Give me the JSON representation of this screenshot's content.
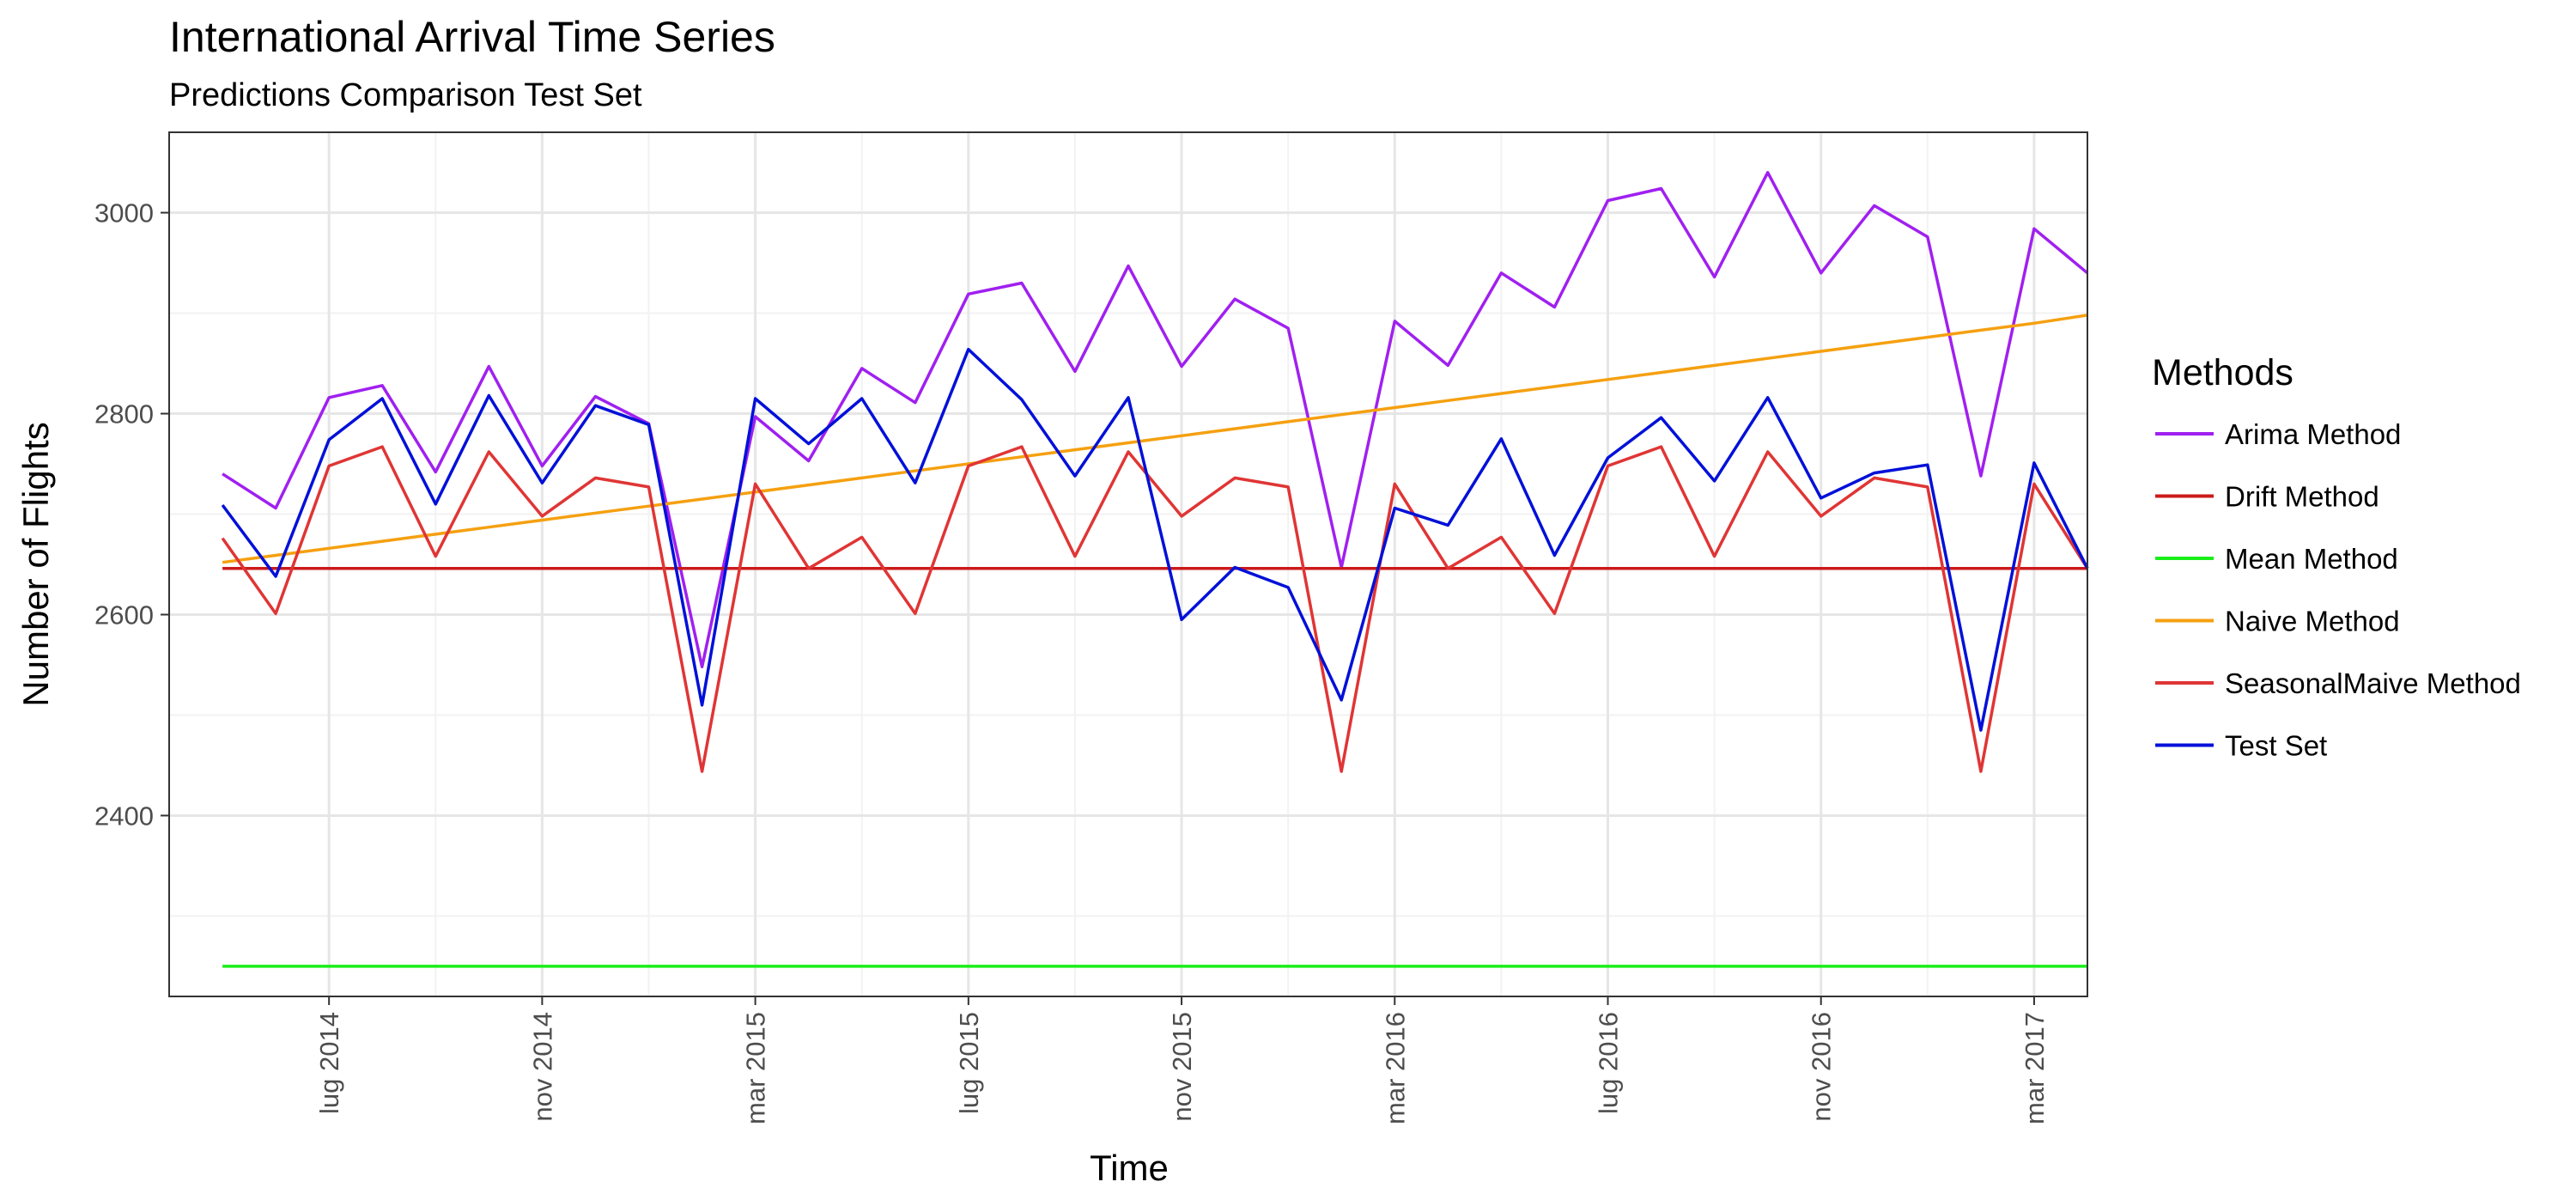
{
  "chart_data": {
    "type": "line",
    "title": "International Arrival Time Series",
    "subtitle": "Predictions Comparison Test Set",
    "xlabel": "Time",
    "ylabel": "Number of Flights",
    "x_range": [
      "2014-04",
      "2017-04"
    ],
    "ylim": [
      2220,
      3080
    ],
    "y_ticks": [
      2400,
      2600,
      2800,
      3000
    ],
    "x_ticks": [
      {
        "label": "lug 2014",
        "date": "2014-07"
      },
      {
        "label": "nov 2014",
        "date": "2014-11"
      },
      {
        "label": "mar 2015",
        "date": "2015-03"
      },
      {
        "label": "lug 2015",
        "date": "2015-07"
      },
      {
        "label": "nov 2015",
        "date": "2015-11"
      },
      {
        "label": "mar 2016",
        "date": "2016-03"
      },
      {
        "label": "lug 2016",
        "date": "2016-07"
      },
      {
        "label": "nov 2016",
        "date": "2016-11"
      },
      {
        "label": "mar 2017",
        "date": "2017-03"
      }
    ],
    "grid": true,
    "legend_position": "right",
    "legend_title": "Methods",
    "x": [
      "2014-05",
      "2014-06",
      "2014-07",
      "2014-08",
      "2014-09",
      "2014-10",
      "2014-11",
      "2014-12",
      "2015-01",
      "2015-02",
      "2015-03",
      "2015-04",
      "2015-05",
      "2015-06",
      "2015-07",
      "2015-08",
      "2015-09",
      "2015-10",
      "2015-11",
      "2015-12",
      "2016-01",
      "2016-02",
      "2016-03",
      "2016-04",
      "2016-05",
      "2016-06",
      "2016-07",
      "2016-08",
      "2016-09",
      "2016-10",
      "2016-11",
      "2016-12",
      "2017-01",
      "2017-02",
      "2017-03",
      "2017-04"
    ],
    "series": [
      {
        "name": "Arima Method",
        "color": "#a020f0",
        "values": [
          2740,
          2706,
          2816,
          2828,
          2742,
          2847,
          2748,
          2817,
          2790,
          2548,
          2797,
          2753,
          2845,
          2811,
          2919,
          2930,
          2842,
          2947,
          2847,
          2914,
          2885,
          2647,
          2892,
          2848,
          2940,
          2906,
          3012,
          3024,
          2936,
          3040,
          2940,
          3007,
          2976,
          2738,
          2984,
          2940
        ]
      },
      {
        "name": "Drift Method",
        "color": "#cc1a1a",
        "values": [
          2646,
          2646,
          2646,
          2646,
          2646,
          2646,
          2646,
          2646,
          2646,
          2646,
          2646,
          2646,
          2646,
          2646,
          2646,
          2646,
          2646,
          2646,
          2646,
          2646,
          2646,
          2646,
          2646,
          2646,
          2646,
          2646,
          2646,
          2646,
          2646,
          2646,
          2646,
          2646,
          2646,
          2646,
          2646,
          2646
        ]
      },
      {
        "name": "Mean Method",
        "color": "#1aee1a",
        "values": [
          2250,
          2250,
          2250,
          2250,
          2250,
          2250,
          2250,
          2250,
          2250,
          2250,
          2250,
          2250,
          2250,
          2250,
          2250,
          2250,
          2250,
          2250,
          2250,
          2250,
          2250,
          2250,
          2250,
          2250,
          2250,
          2250,
          2250,
          2250,
          2250,
          2250,
          2250,
          2250,
          2250,
          2250,
          2250,
          2250
        ]
      },
      {
        "name": "Naive Method",
        "color": "#f5a010",
        "values": [
          2652,
          2659,
          2666,
          2673,
          2680,
          2687,
          2694,
          2701,
          2708,
          2715,
          2722,
          2729,
          2736,
          2743,
          2750,
          2757,
          2764,
          2771,
          2778,
          2785,
          2792,
          2799,
          2806,
          2813,
          2820,
          2827,
          2834,
          2841,
          2848,
          2855,
          2862,
          2869,
          2876,
          2883,
          2890,
          2898
        ]
      },
      {
        "name": "SeasonalMaive Method",
        "color": "#e03535",
        "values": [
          2676,
          2601,
          2748,
          2767,
          2658,
          2762,
          2698,
          2736,
          2727,
          2444,
          2730,
          2646,
          2677,
          2601,
          2748,
          2767,
          2658,
          2762,
          2698,
          2736,
          2727,
          2444,
          2730,
          2646,
          2677,
          2601,
          2748,
          2767,
          2658,
          2762,
          2698,
          2736,
          2727,
          2444,
          2730,
          2646
        ]
      },
      {
        "name": "Test Set",
        "color": "#0010d8",
        "values": [
          2709,
          2638,
          2774,
          2815,
          2710,
          2818,
          2731,
          2808,
          2789,
          2510,
          2815,
          2770,
          2815,
          2731,
          2864,
          2814,
          2738,
          2816,
          2595,
          2647,
          2627,
          2515,
          2706,
          2689,
          2775,
          2659,
          2756,
          2796,
          2733,
          2816,
          2716,
          2741,
          2749,
          2485,
          2751,
          2646
        ]
      }
    ]
  }
}
